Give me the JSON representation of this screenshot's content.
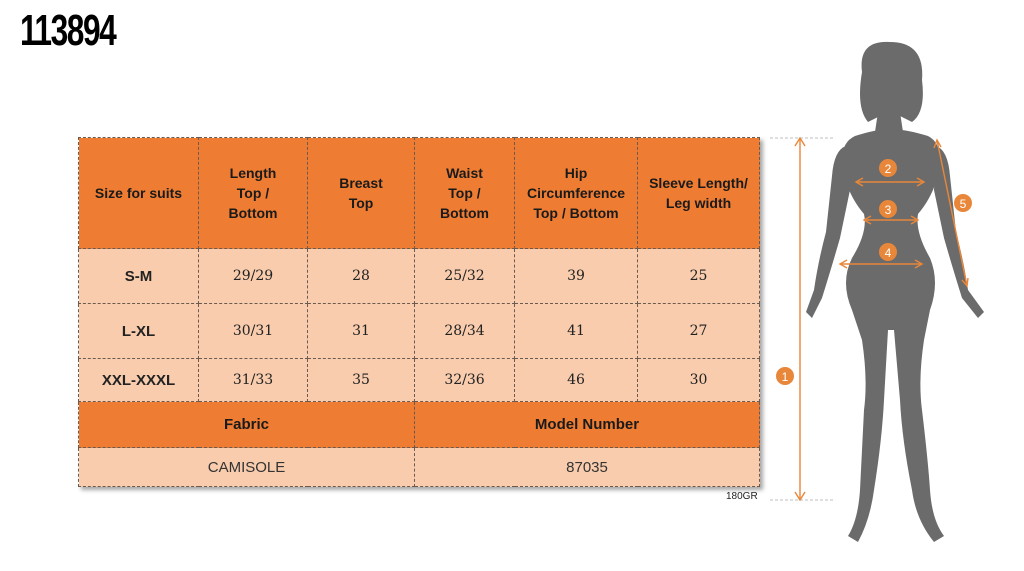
{
  "product_code": "113894",
  "table": {
    "headers": [
      "Size for suits",
      "Length\nTop /\nBottom",
      "Breast\nTop",
      "Waist\nTop /\nBottom",
      "Hip\nCircumference\nTop / Bottom",
      "Sleeve Length/\nLeg width"
    ],
    "rows": [
      [
        "S-M",
        "29/29",
        "28",
        "25/32",
        "39",
        "25"
      ],
      [
        "L-XL",
        "30/31",
        "31",
        "28/34",
        "41",
        "27"
      ],
      [
        "XXL-XXXL",
        "31/33",
        "35",
        "32/36",
        "46",
        "30"
      ]
    ],
    "fabric_label": "Fabric",
    "model_number_label": "Model Number",
    "fabric_value": "CAMISOLE",
    "model_number_value": "87035"
  },
  "weight_note": "180GR",
  "diagram": {
    "markers": [
      "1",
      "2",
      "3",
      "4",
      "5"
    ],
    "accent_color": "#e8873a",
    "figure_color": "#6b6b6b"
  }
}
